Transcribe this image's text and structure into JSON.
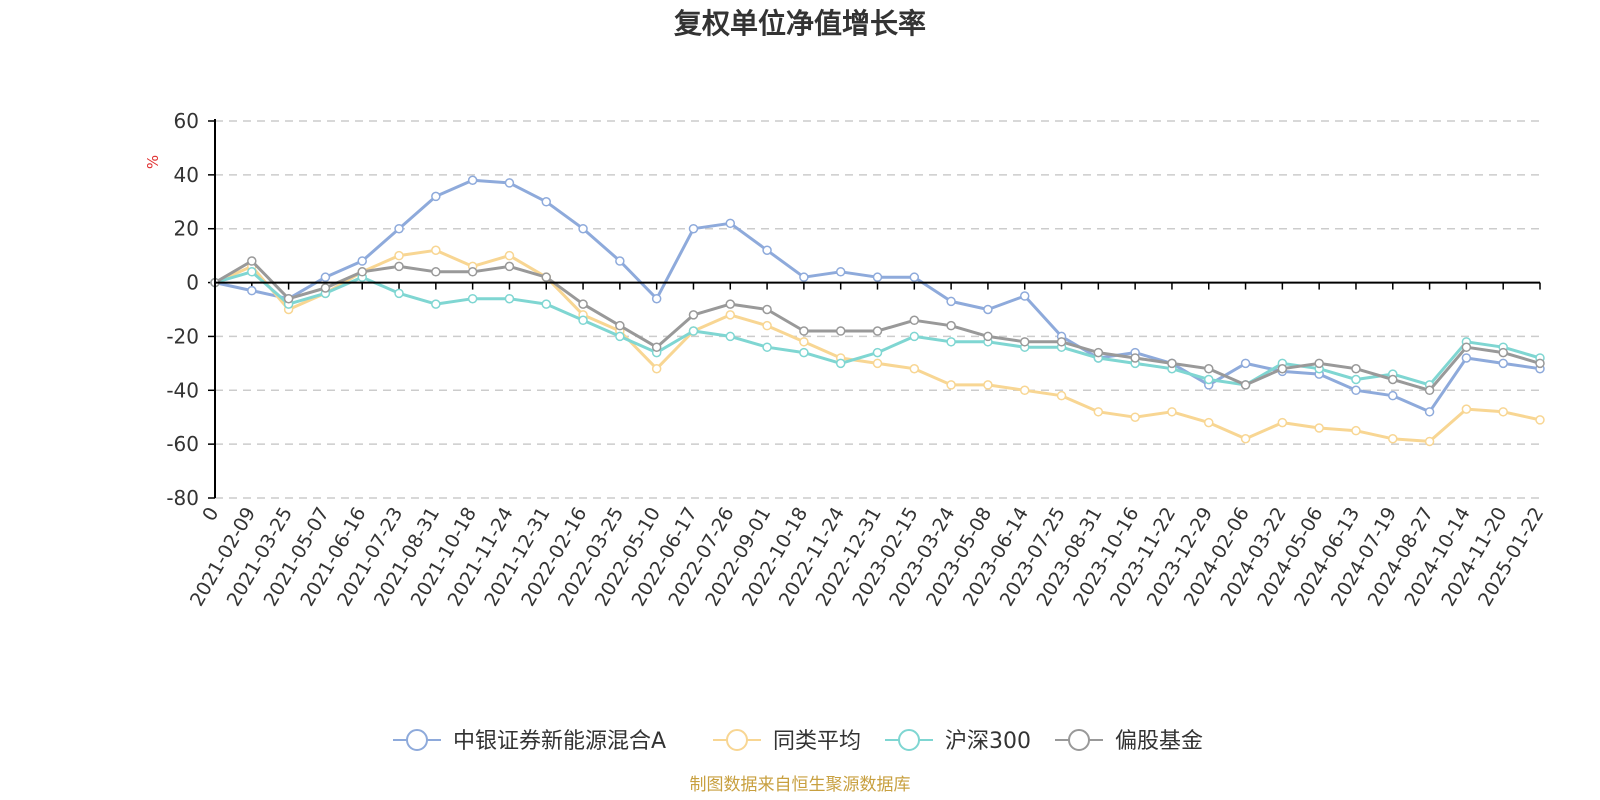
{
  "chart_data": {
    "type": "line",
    "title": "复权单位净值增长率",
    "ylabel": "%",
    "ylim": [
      -80,
      60
    ],
    "yticks": [
      60,
      40,
      20,
      0,
      -20,
      -40,
      -60,
      -80
    ],
    "x_categories": [
      "0",
      "2021-02-09",
      "2021-03-25",
      "2021-05-07",
      "2021-06-16",
      "2021-07-23",
      "2021-08-31",
      "2021-10-18",
      "2021-11-24",
      "2021-12-31",
      "2022-02-16",
      "2022-03-25",
      "2022-05-10",
      "2022-06-17",
      "2022-07-26",
      "2022-09-01",
      "2022-10-18",
      "2022-11-24",
      "2022-12-31",
      "2023-02-15",
      "2023-03-24",
      "2023-05-08",
      "2023-06-14",
      "2023-07-25",
      "2023-08-31",
      "2023-10-16",
      "2023-11-22",
      "2023-12-29",
      "2024-02-06",
      "2024-03-22",
      "2024-05-06",
      "2024-06-13",
      "2024-07-19",
      "2024-08-27",
      "2024-10-14",
      "2024-11-20",
      "2025-01-22"
    ],
    "grid": true,
    "legend_position": "bottom",
    "series": [
      {
        "name": "中银证券新能源混合A",
        "color": "#8eaadb",
        "values": [
          0,
          -3,
          -6,
          2,
          8,
          20,
          32,
          38,
          37,
          30,
          20,
          8,
          -6,
          20,
          22,
          12,
          2,
          4,
          2,
          2,
          -7,
          -10,
          -5,
          -20,
          -28,
          -26,
          -30,
          -38,
          -30,
          -33,
          -34,
          -40,
          -42,
          -48,
          -28,
          -30,
          -32
        ]
      },
      {
        "name": "同类平均",
        "color": "#f8d693",
        "values": [
          0,
          6,
          -10,
          -4,
          4,
          10,
          12,
          6,
          10,
          2,
          -12,
          -18,
          -32,
          -18,
          -12,
          -16,
          -22,
          -28,
          -30,
          -32,
          -38,
          -38,
          -40,
          -42,
          -48,
          -50,
          -48,
          -52,
          -58,
          -52,
          -54,
          -55,
          -58,
          -59,
          -47,
          -48,
          -51
        ]
      },
      {
        "name": "沪深300",
        "color": "#7fd6d2",
        "values": [
          0,
          4,
          -8,
          -4,
          2,
          -4,
          -8,
          -6,
          -6,
          -8,
          -14,
          -20,
          -26,
          -18,
          -20,
          -24,
          -26,
          -30,
          -26,
          -20,
          -22,
          -22,
          -24,
          -24,
          -28,
          -30,
          -32,
          -36,
          -38,
          -30,
          -32,
          -36,
          -34,
          -38,
          -22,
          -24,
          -28
        ]
      },
      {
        "name": "偏股基金",
        "color": "#999999",
        "values": [
          0,
          8,
          -6,
          -2,
          4,
          6,
          4,
          4,
          6,
          2,
          -8,
          -16,
          -24,
          -12,
          -8,
          -10,
          -18,
          -18,
          -18,
          -14,
          -16,
          -20,
          -22,
          -22,
          -26,
          -28,
          -30,
          -32,
          -38,
          -32,
          -30,
          -32,
          -36,
          -40,
          -24,
          -26,
          -30
        ]
      }
    ]
  },
  "source_text": "制图数据来自恒生聚源数据库",
  "colors": {
    "axis": "#000000",
    "grid": "#cccccc",
    "unit": "#e03030",
    "source": "#c8a040"
  }
}
